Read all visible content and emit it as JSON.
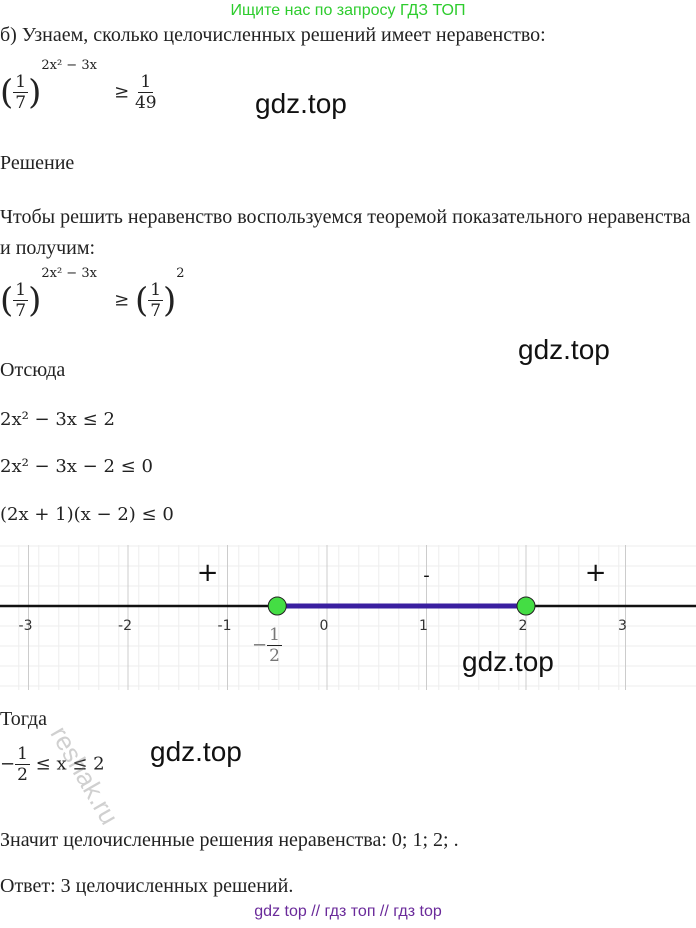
{
  "header": {
    "banner": "Ищите нас по запросу ГДЗ ТОП",
    "color": "#2ecc2e"
  },
  "problem": {
    "intro": "б) Узнаем, сколько целочисленных решений имеет неравенство:",
    "base_num": "1",
    "base_den": "7",
    "exponent": "2x² − 3x",
    "relation": "≥",
    "rhs_num": "1",
    "rhs_den": "49"
  },
  "solution_label": "Решение",
  "step1": {
    "text": "Чтобы решить неравенство воспользуемся теоремой показательного неравенства и получим:",
    "rhs_exponent": "2"
  },
  "hence_label": "Отсюда",
  "equations": [
    "2x² − 3x ≤ 2",
    "2x² − 3x − 2 ≤ 0",
    "(2x + 1)(x − 2) ≤ 0"
  ],
  "number_line": {
    "ticks": [
      "-3",
      "-2",
      "-1",
      "0",
      "1",
      "2",
      "3"
    ],
    "tick_values": [
      -3,
      -2,
      -1,
      0,
      1,
      2,
      3
    ],
    "signs": [
      "+",
      "-",
      "+"
    ],
    "points": [
      -0.5,
      2
    ],
    "point_label_num": "1",
    "point_label_den": "2",
    "point_label_sign": "−",
    "segment_color": "#3a1fa0",
    "point_color": "#44dd44"
  },
  "then_label": "Тогда",
  "result_ineq": {
    "sign": "−",
    "num": "1",
    "den": "2",
    "rest": "≤ x ≤ 2"
  },
  "integer_solutions": "Значит целочисленные решения неравенства:  0;  1;  2; .",
  "answer": "Ответ: 3 целочисленных решений.",
  "watermarks": [
    "gdz.top",
    "gdz.top",
    "gdz.top",
    "gdz.top"
  ],
  "stamp": "reshak.ru",
  "footer": "gdz top  //  гдз топ  //  гдз top"
}
